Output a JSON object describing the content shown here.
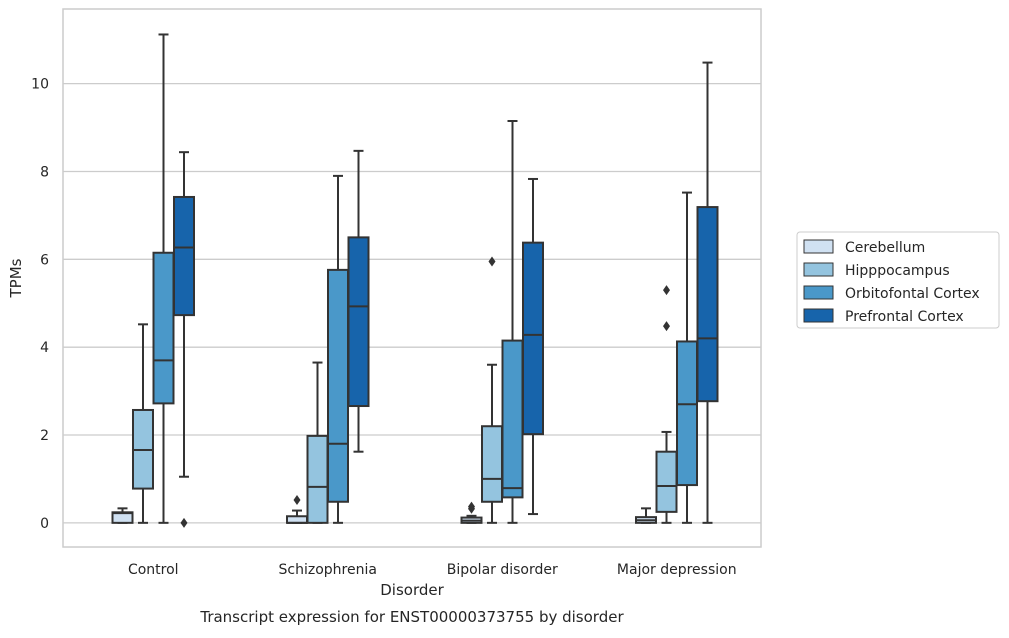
{
  "caption": "Transcript expression for ENST00000373755 by disorder",
  "chart_data": {
    "type": "box",
    "xlabel": "Disorder",
    "ylabel": "TPMs",
    "ylim": [
      -0.55,
      11.7
    ],
    "yticks": [
      0,
      2,
      4,
      6,
      8,
      10
    ],
    "grid": "horizontal",
    "legend_position": "right",
    "categories": [
      "Control",
      "Schizophrenia",
      "Bipolar disorder",
      "Major depression"
    ],
    "series": [
      {
        "name": "Cerebellum",
        "color": "#d0e1f2",
        "boxes": [
          {
            "whislo": 0.0,
            "q1": 0.0,
            "med": 0.22,
            "q3": 0.24,
            "whishi": 0.33,
            "fliers": []
          },
          {
            "whislo": 0.0,
            "q1": 0.0,
            "med": 0.0,
            "q3": 0.15,
            "whishi": 0.28,
            "fliers": [
              0.52
            ]
          },
          {
            "whislo": 0.0,
            "q1": 0.0,
            "med": 0.05,
            "q3": 0.12,
            "whishi": 0.16,
            "fliers": [
              0.32,
              0.37
            ]
          },
          {
            "whislo": 0.0,
            "q1": 0.0,
            "med": 0.06,
            "q3": 0.13,
            "whishi": 0.33,
            "fliers": []
          }
        ]
      },
      {
        "name": "Hipppocampus",
        "color": "#94c4df",
        "boxes": [
          {
            "whislo": 0.0,
            "q1": 0.78,
            "med": 1.66,
            "q3": 2.57,
            "whishi": 4.52,
            "fliers": []
          },
          {
            "whislo": 0.0,
            "q1": 0.0,
            "med": 0.82,
            "q3": 1.98,
            "whishi": 3.65,
            "fliers": []
          },
          {
            "whislo": 0.0,
            "q1": 0.48,
            "med": 1.0,
            "q3": 2.2,
            "whishi": 3.6,
            "fliers": [
              5.95
            ]
          },
          {
            "whislo": 0.0,
            "q1": 0.25,
            "med": 0.84,
            "q3": 1.62,
            "whishi": 2.07,
            "fliers": [
              4.48,
              5.3
            ]
          }
        ]
      },
      {
        "name": "Orbitofontal Cortex",
        "color": "#4a98c9",
        "boxes": [
          {
            "whislo": 0.0,
            "q1": 2.72,
            "med": 3.7,
            "q3": 6.15,
            "whishi": 11.12,
            "fliers": []
          },
          {
            "whislo": 0.0,
            "q1": 0.48,
            "med": 1.8,
            "q3": 5.76,
            "whishi": 7.9,
            "fliers": []
          },
          {
            "whislo": 0.0,
            "q1": 0.58,
            "med": 0.79,
            "q3": 4.15,
            "whishi": 9.15,
            "fliers": []
          },
          {
            "whislo": 0.0,
            "q1": 0.86,
            "med": 2.7,
            "q3": 4.13,
            "whishi": 7.52,
            "fliers": []
          }
        ]
      },
      {
        "name": "Prefrontal Cortex",
        "color": "#1764ab",
        "boxes": [
          {
            "whislo": 1.05,
            "q1": 4.73,
            "med": 6.27,
            "q3": 7.42,
            "whishi": 8.44,
            "fliers": [
              0.0
            ]
          },
          {
            "whislo": 1.62,
            "q1": 2.66,
            "med": 4.93,
            "q3": 6.5,
            "whishi": 8.47,
            "fliers": []
          },
          {
            "whislo": 0.2,
            "q1": 2.02,
            "med": 4.28,
            "q3": 6.38,
            "whishi": 7.83,
            "fliers": []
          },
          {
            "whislo": 0.0,
            "q1": 2.77,
            "med": 4.2,
            "q3": 7.19,
            "whishi": 10.48,
            "fliers": []
          }
        ]
      }
    ]
  }
}
